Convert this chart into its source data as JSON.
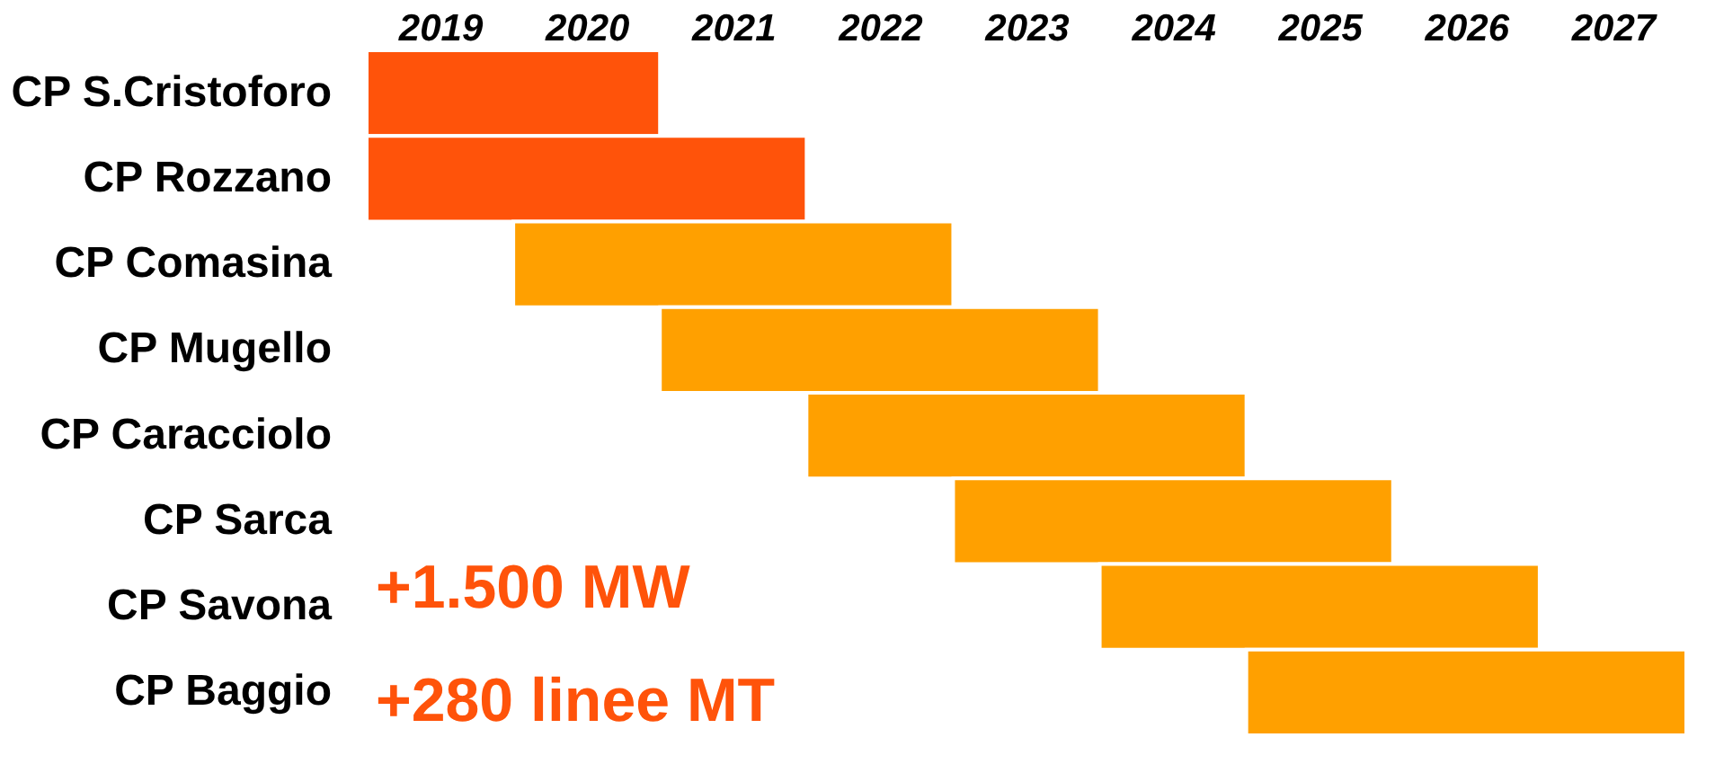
{
  "chart_data": {
    "type": "bar",
    "orientation": "horizontal",
    "categories": [
      "CP S.Cristoforo",
      "CP Rozzano",
      "CP Comasina",
      "CP Mugello",
      "CP Caracciolo",
      "CP Sarca",
      "CP Savona",
      "CP Baggio"
    ],
    "base": [
      2018.5,
      2018.5,
      2019.5,
      2020.5,
      2021.5,
      2022.5,
      2023.5,
      2024.5
    ],
    "values": [
      2,
      3,
      3,
      3,
      3,
      3,
      3,
      3
    ],
    "colors": [
      "#ff530a",
      "#ff530a",
      "#ffa000",
      "#ffa000",
      "#ffa000",
      "#ffa000",
      "#ffa000",
      "#ffa000"
    ],
    "xlim": [
      2018.5,
      2027.5
    ],
    "xticks": [
      2019,
      2020,
      2021,
      2022,
      2023,
      2024,
      2025,
      2026,
      2027
    ],
    "grid": false,
    "annotations": [
      "+1.500 MW",
      "+280 linee MT"
    ]
  }
}
